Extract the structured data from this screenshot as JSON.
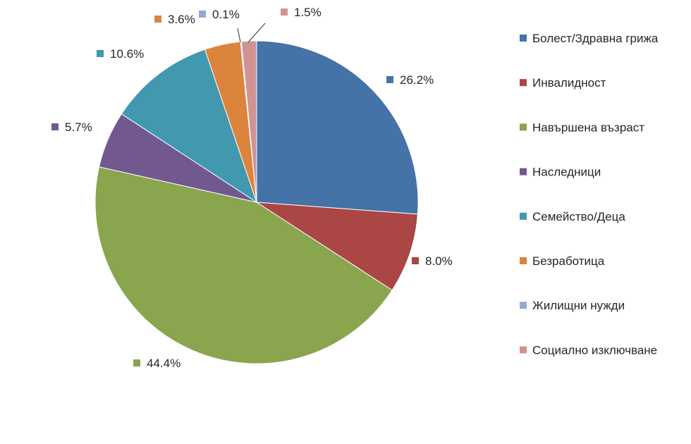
{
  "chart_data": {
    "type": "pie",
    "title": "",
    "legend_position": "right",
    "start_angle_deg": 0,
    "direction": "clockwise",
    "slices": [
      {
        "name": "Болест/Здравна грижа",
        "value": 26.2,
        "label": "26.2%",
        "color": "#4572a7"
      },
      {
        "name": "Инвалидност",
        "value": 8.0,
        "label": "8.0%",
        "color": "#aa4643"
      },
      {
        "name": "Навършена възраст",
        "value": 44.4,
        "label": "44.4%",
        "color": "#89a54e"
      },
      {
        "name": "Наследници",
        "value": 5.7,
        "label": "5.7%",
        "color": "#71588f"
      },
      {
        "name": "Семейство/Деца",
        "value": 10.6,
        "label": "10.6%",
        "color": "#4198af"
      },
      {
        "name": "Безработица",
        "value": 3.6,
        "label": "3.6%",
        "color": "#db843d"
      },
      {
        "name": "Жилищни нужди",
        "value": 0.1,
        "label": "0.1%",
        "color": "#93a9cf"
      },
      {
        "name": "Социално изключване",
        "value": 1.5,
        "label": "1.5%",
        "color": "#d19392"
      }
    ]
  }
}
